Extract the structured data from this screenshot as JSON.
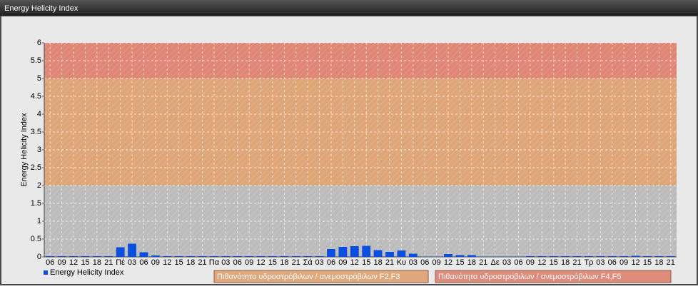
{
  "chart_data": {
    "type": "bar",
    "title": "Energy Helicity Index",
    "ylabel": "Energy Helicity Index",
    "categories": [
      "06",
      "09",
      "12",
      "15",
      "18",
      "21",
      "Πέ",
      "03",
      "06",
      "09",
      "12",
      "15",
      "18",
      "21",
      "Πα",
      "03",
      "06",
      "09",
      "12",
      "15",
      "18",
      "21",
      "Σά",
      "03",
      "06",
      "09",
      "12",
      "15",
      "18",
      "21",
      "Κυ",
      "03",
      "06",
      "09",
      "12",
      "15",
      "18",
      "21",
      "Δε",
      "03",
      "06",
      "09",
      "12",
      "15",
      "18",
      "21",
      "Τρ",
      "03",
      "06",
      "09",
      "12",
      "15",
      "18",
      "21"
    ],
    "series": [
      {
        "name": "Energy Helicity Index",
        "color": "#0b4fe0",
        "values": [
          0.02,
          0.02,
          0.02,
          0.02,
          0.02,
          0.02,
          0.27,
          0.37,
          0.13,
          0.04,
          0.02,
          0.02,
          0.02,
          0.02,
          0.02,
          0.02,
          0.02,
          0.02,
          0.02,
          0.02,
          0.02,
          0.02,
          0.02,
          0.02,
          0.22,
          0.28,
          0.3,
          0.31,
          0.19,
          0.14,
          0.18,
          0.09,
          0.01,
          0.01,
          0.08,
          0.05,
          0.05,
          0.01,
          0.01,
          0.01,
          0.01,
          0.02,
          0.02,
          0.02,
          0.02,
          0.02,
          0.02,
          0.02,
          0.02,
          0.02,
          0.03,
          0.02,
          0.02,
          0.02
        ]
      }
    ],
    "ylim": [
      0,
      6
    ],
    "yticks": [
      0,
      0.5,
      1,
      1.5,
      2,
      2.5,
      3,
      3.5,
      4,
      4.5,
      5,
      5.5,
      6
    ],
    "grid": true,
    "bands": [
      {
        "from": 0,
        "to": 2,
        "color": "#bcbcbc"
      },
      {
        "from": 2,
        "to": 5,
        "color": "#dea577",
        "label": "Πιθανότητα υδροστρόβιλων / ανεμοστρόβιλων F2,F3"
      },
      {
        "from": 5,
        "to": 6,
        "color": "#df8676",
        "label": "Πιθανότητα υδροστρόβιλων / ανεμοστρόβιλων F4,F5"
      }
    ]
  }
}
